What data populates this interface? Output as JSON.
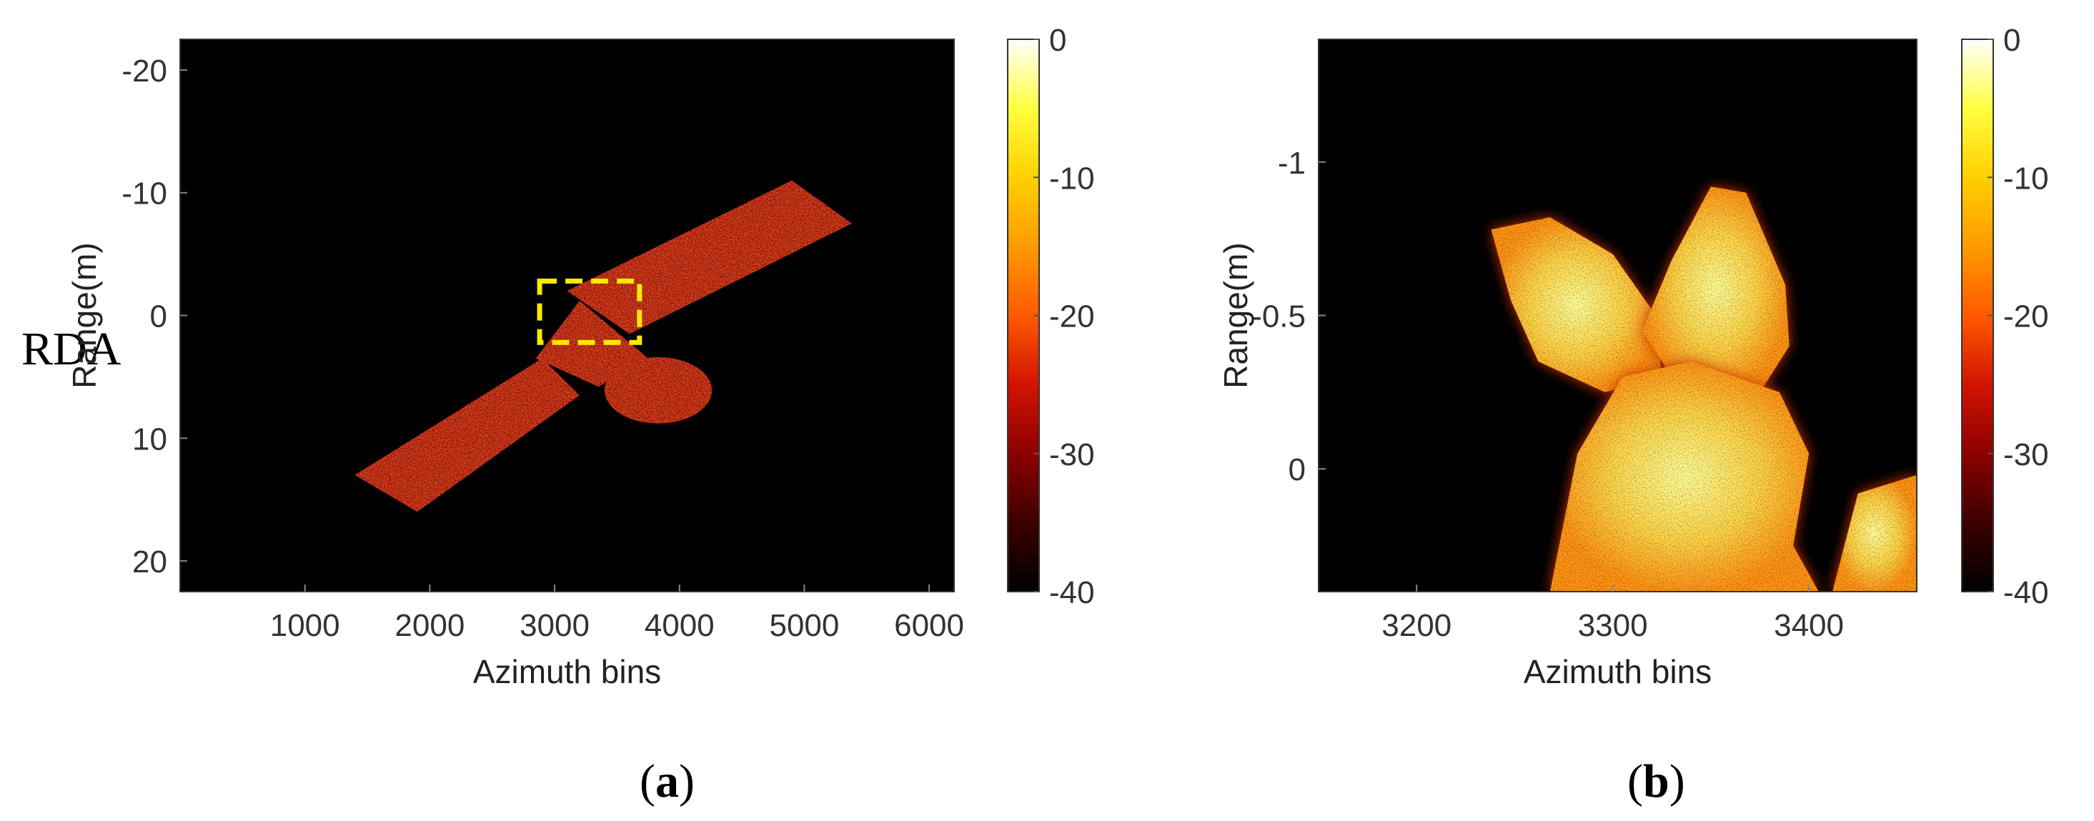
{
  "row_label": "RDA",
  "captions": {
    "a": "a",
    "b": "b"
  },
  "colors": {
    "background": "#000000",
    "target": "#c81e00",
    "zoom_box": "#ffe800",
    "colormap": [
      "#000000",
      "#3c0000",
      "#8c0000",
      "#d21400",
      "#ff5a00",
      "#ff9a00",
      "#ffd000",
      "#ffff40",
      "#ffffff"
    ]
  },
  "chart_data": [
    {
      "type": "heatmap",
      "id": "a",
      "title": "",
      "xlabel": "Azimuth bins",
      "ylabel": "Range(m)",
      "xlim": [
        0,
        6200
      ],
      "ylim": [
        -22.5,
        22.5
      ],
      "y_inverted": true,
      "xticks": [
        1000,
        2000,
        3000,
        4000,
        5000,
        6000
      ],
      "yticks": [
        -20,
        -10,
        0,
        10,
        20
      ],
      "colorbar": {
        "ticks": [
          0,
          -10,
          -20,
          -30,
          -40
        ],
        "range": [
          -40,
          0
        ]
      },
      "annotations": [
        {
          "type": "rectangle",
          "style": "dashed",
          "color": "yellow",
          "x": [
            2880,
            3680
          ],
          "y": [
            -2.8,
            2.2
          ]
        }
      ],
      "target_regions": [
        {
          "name": "solar panel upper",
          "polygon": [
            [
              3100,
              -2
            ],
            [
              4900,
              -11
            ],
            [
              5380,
              -7.5
            ],
            [
              3600,
              1.5
            ]
          ]
        },
        {
          "name": "solar panel lower",
          "polygon": [
            [
              1400,
              13
            ],
            [
              2900,
              3.5
            ],
            [
              3200,
              6.5
            ],
            [
              1900,
              16
            ]
          ]
        },
        {
          "name": "bus",
          "polygon": [
            [
              2850,
              3.5
            ],
            [
              3200,
              -1.2
            ],
            [
              3750,
              3.5
            ],
            [
              3350,
              5.8
            ]
          ]
        },
        {
          "name": "antenna dish",
          "ellipse": {
            "cx": 3830,
            "cy": 6.1,
            "rx": 430,
            "ry": 2.7
          }
        }
      ]
    },
    {
      "type": "heatmap",
      "id": "b",
      "title": "",
      "xlabel": "Azimuth bins",
      "ylabel": "Range(m)",
      "xlim": [
        3150,
        3455
      ],
      "ylim": [
        -1.4,
        0.4
      ],
      "y_inverted": true,
      "xticks": [
        3200,
        3300,
        3400
      ],
      "yticks": [
        -1,
        -0.5,
        0
      ],
      "colorbar": {
        "ticks": [
          0,
          -10,
          -20,
          -30,
          -40
        ],
        "range": [
          -40,
          0
        ]
      },
      "target_regions": [
        {
          "name": "left lobe",
          "polygon": [
            [
              3238,
              -0.78
            ],
            [
              3268,
              -0.82
            ],
            [
              3300,
              -0.7
            ],
            [
              3322,
              -0.5
            ],
            [
              3325,
              -0.3
            ],
            [
              3296,
              -0.25
            ],
            [
              3262,
              -0.35
            ],
            [
              3248,
              -0.55
            ]
          ]
        },
        {
          "name": "right lobe",
          "polygon": [
            [
              3330,
              -0.68
            ],
            [
              3350,
              -0.92
            ],
            [
              3368,
              -0.9
            ],
            [
              3388,
              -0.6
            ],
            [
              3390,
              -0.4
            ],
            [
              3375,
              -0.25
            ],
            [
              3330,
              -0.3
            ],
            [
              3315,
              -0.45
            ]
          ]
        },
        {
          "name": "bottom blob",
          "polygon": [
            [
              3268,
              0.4
            ],
            [
              3282,
              -0.05
            ],
            [
              3305,
              -0.3
            ],
            [
              3340,
              -0.35
            ],
            [
              3385,
              -0.25
            ],
            [
              3400,
              -0.05
            ],
            [
              3392,
              0.25
            ],
            [
              3405,
              0.4
            ]
          ]
        },
        {
          "name": "lower right corner",
          "polygon": [
            [
              3412,
              0.4
            ],
            [
              3425,
              0.08
            ],
            [
              3455,
              0.02
            ],
            [
              3455,
              0.4
            ]
          ]
        }
      ]
    }
  ]
}
